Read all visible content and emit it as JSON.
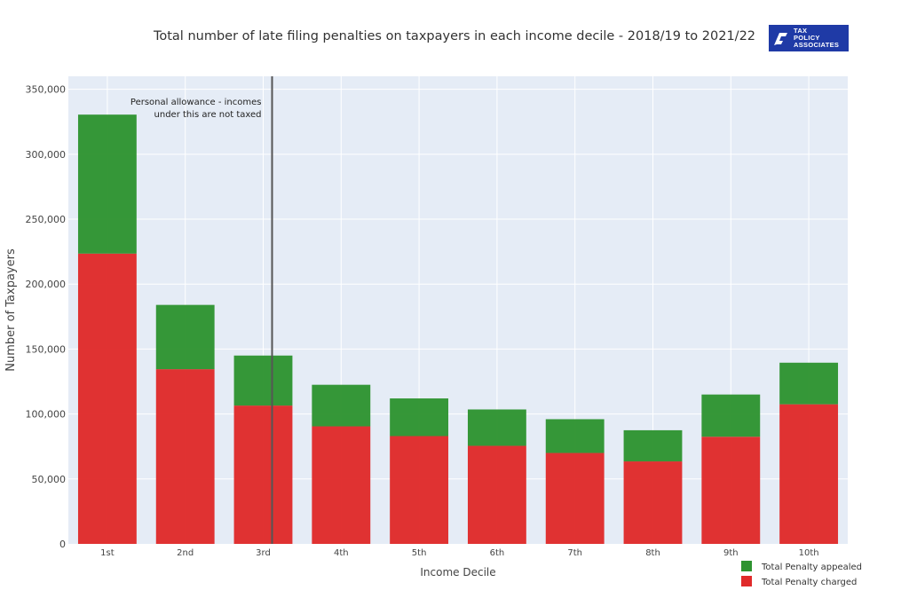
{
  "logo": {
    "lines": [
      "TAX",
      "POLICY",
      "ASSOCIATES"
    ]
  },
  "chart_data": {
    "type": "bar",
    "stacked": true,
    "title": "Total number of late filing penalties on taxpayers in each income decile - 2018/19  to 2021/22",
    "xlabel": "Income Decile",
    "ylabel": "Number of Taxpayers",
    "ylim": [
      0,
      360000
    ],
    "yticks": [
      0,
      50000,
      100000,
      150000,
      200000,
      250000,
      300000,
      350000
    ],
    "ytick_labels": [
      "0",
      "50,000",
      "100,000",
      "150,000",
      "200,000",
      "250,000",
      "300,000",
      "350,000"
    ],
    "grid": true,
    "legend_position": "bottom-right",
    "categories": [
      "1st",
      "2nd",
      "3rd",
      "4th",
      "5th",
      "6th",
      "7th",
      "8th",
      "9th",
      "10th"
    ],
    "series": [
      {
        "name": "Total Penalty charged",
        "color": "#e02a2a",
        "values": [
          223500,
          134500,
          106500,
          90500,
          83000,
          75500,
          70000,
          63500,
          82500,
          107500
        ]
      },
      {
        "name": "Total Penalty appealed",
        "color": "#2e9330",
        "values": [
          107000,
          49500,
          38500,
          32000,
          29000,
          28000,
          26000,
          24000,
          32500,
          32000
        ]
      }
    ],
    "legend_order": [
      "Total Penalty appealed",
      "Total Penalty charged"
    ],
    "annotation": {
      "lines": [
        "Personal allowance - incomes",
        "under this are not taxed"
      ],
      "x_category": "3rd"
    }
  }
}
